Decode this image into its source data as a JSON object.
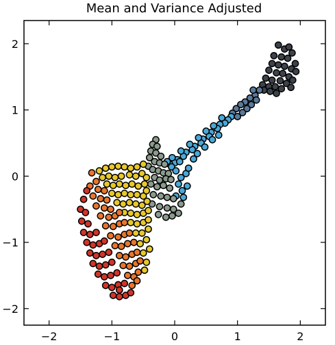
{
  "chart_data": {
    "type": "scatter",
    "title": "Mean and Variance Adjusted",
    "xlabel": "",
    "ylabel": "",
    "xlim": [
      -2.4,
      2.4
    ],
    "ylim": [
      -2.25,
      2.35
    ],
    "xticks": [
      -2,
      -1,
      0,
      1,
      2
    ],
    "yticks": [
      -2,
      -1,
      0,
      1,
      2
    ],
    "xtick_labels": [
      "−2",
      "−1",
      "0",
      "1",
      "2"
    ],
    "ytick_labels": [
      "−2",
      "−1",
      "0",
      "1",
      "2"
    ],
    "grid": false,
    "colors": {
      "neck_dark": "#3a4048",
      "neck_blue": "#4aa8d8",
      "knobs_gray": "#8a9a8c",
      "body_yellow": "#e8c82a",
      "body_orange": "#e8742a",
      "body_red": "#d0352a"
    },
    "series": [
      {
        "color": "#3d434b",
        "points": [
          [
            1.65,
            1.98
          ],
          [
            1.75,
            1.92
          ],
          [
            1.82,
            1.95
          ],
          [
            1.87,
            1.86
          ],
          [
            1.58,
            1.82
          ],
          [
            1.7,
            1.8
          ],
          [
            1.8,
            1.78
          ],
          [
            1.92,
            1.7
          ],
          [
            1.55,
            1.7
          ],
          [
            1.65,
            1.68
          ],
          [
            1.75,
            1.66
          ],
          [
            1.86,
            1.62
          ],
          [
            1.5,
            1.6
          ],
          [
            1.62,
            1.56
          ],
          [
            1.72,
            1.55
          ],
          [
            1.82,
            1.5
          ],
          [
            1.93,
            1.58
          ],
          [
            1.45,
            1.48
          ],
          [
            1.55,
            1.45
          ],
          [
            1.68,
            1.44
          ],
          [
            1.78,
            1.4
          ],
          [
            1.88,
            1.45
          ],
          [
            1.6,
            1.35
          ],
          [
            1.7,
            1.32
          ],
          [
            1.5,
            1.35
          ],
          [
            1.4,
            1.38
          ],
          [
            1.85,
            1.34
          ],
          [
            1.62,
            1.25
          ],
          [
            1.52,
            1.28
          ],
          [
            1.42,
            1.3
          ]
        ]
      },
      {
        "color": "#5a7a9a",
        "points": [
          [
            1.35,
            1.3
          ],
          [
            1.28,
            1.22
          ],
          [
            1.2,
            1.18
          ],
          [
            1.3,
            1.15
          ],
          [
            1.12,
            1.12
          ],
          [
            1.22,
            1.08
          ],
          [
            1.05,
            1.08
          ],
          [
            1.15,
            1.02
          ],
          [
            0.98,
            1.02
          ],
          [
            1.08,
            0.96
          ],
          [
            0.92,
            0.95
          ],
          [
            1.0,
            0.9
          ],
          [
            1.25,
            1.3
          ]
        ]
      },
      {
        "color": "#4aa8d8",
        "points": [
          [
            0.9,
            0.9
          ],
          [
            0.85,
            0.85
          ],
          [
            0.8,
            0.8
          ],
          [
            0.75,
            0.88
          ],
          [
            0.72,
            0.78
          ],
          [
            0.68,
            0.72
          ],
          [
            0.62,
            0.76
          ],
          [
            0.58,
            0.66
          ],
          [
            0.55,
            0.6
          ],
          [
            0.5,
            0.68
          ],
          [
            0.45,
            0.56
          ],
          [
            0.42,
            0.5
          ],
          [
            0.38,
            0.58
          ],
          [
            0.32,
            0.45
          ],
          [
            0.28,
            0.4
          ],
          [
            0.24,
            0.48
          ],
          [
            0.18,
            0.36
          ],
          [
            0.14,
            0.3
          ],
          [
            0.1,
            0.38
          ],
          [
            0.04,
            0.25
          ],
          [
            0.0,
            0.2
          ],
          [
            -0.04,
            0.28
          ],
          [
            -0.08,
            0.18
          ],
          [
            -0.12,
            0.22
          ],
          [
            -0.05,
            0.14
          ],
          [
            0.08,
            0.22
          ],
          [
            0.02,
            0.08
          ],
          [
            0.1,
            -0.02
          ],
          [
            0.18,
            0.04
          ],
          [
            0.06,
            -0.12
          ],
          [
            0.12,
            -0.22
          ],
          [
            0.2,
            -0.15
          ],
          [
            0.14,
            -0.32
          ],
          [
            0.02,
            -0.3
          ],
          [
            0.22,
            0.12
          ],
          [
            0.3,
            0.26
          ],
          [
            0.36,
            0.34
          ],
          [
            0.48,
            0.44
          ],
          [
            0.6,
            0.55
          ],
          [
            0.7,
            0.62
          ]
        ]
      },
      {
        "color": "#8a9a8c",
        "points": [
          [
            -0.3,
            0.55
          ],
          [
            -0.35,
            0.48
          ],
          [
            -0.28,
            0.45
          ],
          [
            -0.38,
            0.38
          ],
          [
            -0.3,
            0.35
          ],
          [
            -0.22,
            0.3
          ],
          [
            -0.4,
            0.28
          ],
          [
            -0.32,
            0.22
          ],
          [
            -0.24,
            0.2
          ],
          [
            -0.16,
            0.18
          ],
          [
            -0.42,
            0.15
          ],
          [
            -0.35,
            0.1
          ],
          [
            -0.26,
            0.08
          ],
          [
            -0.18,
            0.05
          ],
          [
            -0.1,
            0.04
          ],
          [
            -0.32,
            -0.02
          ],
          [
            -0.24,
            -0.06
          ],
          [
            -0.14,
            -0.04
          ],
          [
            -0.06,
            -0.05
          ],
          [
            -0.38,
            -0.12
          ],
          [
            -0.28,
            -0.16
          ],
          [
            -0.18,
            -0.14
          ],
          [
            -0.08,
            -0.18
          ],
          [
            -0.34,
            -0.28
          ],
          [
            -0.22,
            -0.3
          ],
          [
            -0.12,
            -0.32
          ],
          [
            -0.02,
            -0.34
          ],
          [
            -0.36,
            -0.42
          ],
          [
            -0.24,
            -0.46
          ],
          [
            -0.12,
            -0.48
          ],
          [
            -0.02,
            -0.5
          ],
          [
            -0.26,
            -0.58
          ],
          [
            -0.14,
            -0.62
          ],
          [
            -0.04,
            -0.6
          ],
          [
            0.06,
            -0.56
          ],
          [
            0.1,
            -0.42
          ]
        ]
      },
      {
        "color": "#e8c82a",
        "points": [
          [
            -1.1,
            0.12
          ],
          [
            -1.0,
            0.14
          ],
          [
            -0.9,
            0.15
          ],
          [
            -0.8,
            0.14
          ],
          [
            -0.7,
            0.12
          ],
          [
            -0.6,
            0.14
          ],
          [
            -0.5,
            0.18
          ],
          [
            -1.2,
            0.08
          ],
          [
            -1.15,
            -0.02
          ],
          [
            -1.05,
            0.0
          ],
          [
            -0.95,
            -0.02
          ],
          [
            -0.85,
            0.0
          ],
          [
            -0.72,
            0.02
          ],
          [
            -0.62,
            0.0
          ],
          [
            -0.52,
            0.04
          ],
          [
            -0.45,
            -0.02
          ],
          [
            -1.08,
            -0.12
          ],
          [
            -0.98,
            -0.14
          ],
          [
            -0.88,
            -0.12
          ],
          [
            -0.78,
            -0.14
          ],
          [
            -0.68,
            -0.12
          ],
          [
            -0.58,
            -0.15
          ],
          [
            -0.48,
            -0.12
          ],
          [
            -1.0,
            -0.26
          ],
          [
            -0.9,
            -0.28
          ],
          [
            -0.8,
            -0.26
          ],
          [
            -0.7,
            -0.28
          ],
          [
            -0.6,
            -0.28
          ],
          [
            -0.5,
            -0.3
          ],
          [
            -0.45,
            -0.22
          ],
          [
            -0.92,
            -0.4
          ],
          [
            -0.82,
            -0.42
          ],
          [
            -0.72,
            -0.4
          ],
          [
            -0.62,
            -0.42
          ],
          [
            -0.52,
            -0.44
          ],
          [
            -0.44,
            -0.38
          ],
          [
            -0.8,
            -0.55
          ],
          [
            -0.7,
            -0.56
          ],
          [
            -0.6,
            -0.58
          ],
          [
            -0.5,
            -0.56
          ],
          [
            -0.42,
            -0.52
          ],
          [
            -0.7,
            -0.7
          ],
          [
            -0.6,
            -0.72
          ],
          [
            -0.5,
            -0.7
          ],
          [
            -0.42,
            -0.66
          ],
          [
            -0.62,
            -0.86
          ],
          [
            -0.52,
            -0.86
          ],
          [
            -0.42,
            -0.8
          ],
          [
            -0.55,
            -1.02
          ],
          [
            -0.45,
            -0.96
          ],
          [
            -0.5,
            -1.16
          ],
          [
            -0.4,
            -1.1
          ],
          [
            -0.45,
            -1.3
          ],
          [
            -0.48,
            -1.42
          ]
        ]
      },
      {
        "color": "#e8762b",
        "points": [
          [
            -1.32,
            0.05
          ],
          [
            -1.25,
            -0.08
          ],
          [
            -1.35,
            -0.15
          ],
          [
            -1.22,
            -0.2
          ],
          [
            -1.12,
            -0.22
          ],
          [
            -1.3,
            -0.3
          ],
          [
            -1.18,
            -0.34
          ],
          [
            -1.08,
            -0.36
          ],
          [
            -1.25,
            -0.45
          ],
          [
            -1.12,
            -0.48
          ],
          [
            -1.02,
            -0.5
          ],
          [
            -1.18,
            -0.6
          ],
          [
            -1.05,
            -0.62
          ],
          [
            -0.95,
            -0.6
          ],
          [
            -0.88,
            -0.55
          ],
          [
            -1.1,
            -0.75
          ],
          [
            -0.98,
            -0.76
          ],
          [
            -0.88,
            -0.72
          ],
          [
            -0.8,
            -0.7
          ],
          [
            -1.02,
            -0.9
          ],
          [
            -0.9,
            -0.92
          ],
          [
            -0.8,
            -0.88
          ],
          [
            -0.72,
            -0.86
          ],
          [
            -0.95,
            -1.05
          ],
          [
            -0.85,
            -1.06
          ],
          [
            -0.75,
            -1.02
          ],
          [
            -0.65,
            -1.0
          ],
          [
            -0.88,
            -1.2
          ],
          [
            -0.78,
            -1.22
          ],
          [
            -0.68,
            -1.18
          ],
          [
            -0.6,
            -1.15
          ],
          [
            -0.82,
            -1.35
          ],
          [
            -0.72,
            -1.36
          ],
          [
            -0.62,
            -1.32
          ],
          [
            -0.55,
            -1.28
          ],
          [
            -0.75,
            -1.5
          ],
          [
            -0.65,
            -1.52
          ],
          [
            -0.58,
            -1.45
          ],
          [
            -0.68,
            -1.65
          ],
          [
            -0.6,
            -1.58
          ]
        ]
      },
      {
        "color": "#d0352a",
        "points": [
          [
            -1.45,
            -0.35
          ],
          [
            -1.5,
            -0.5
          ],
          [
            -1.42,
            -0.55
          ],
          [
            -1.48,
            -0.68
          ],
          [
            -1.38,
            -0.72
          ],
          [
            -1.45,
            -0.85
          ],
          [
            -1.35,
            -0.88
          ],
          [
            -1.25,
            -0.85
          ],
          [
            -1.4,
            -1.0
          ],
          [
            -1.3,
            -1.04
          ],
          [
            -1.2,
            -1.02
          ],
          [
            -1.12,
            -0.98
          ],
          [
            -1.35,
            -1.16
          ],
          [
            -1.25,
            -1.2
          ],
          [
            -1.15,
            -1.18
          ],
          [
            -1.05,
            -1.15
          ],
          [
            -1.3,
            -1.32
          ],
          [
            -1.2,
            -1.36
          ],
          [
            -1.1,
            -1.34
          ],
          [
            -1.0,
            -1.3
          ],
          [
            -1.22,
            -1.48
          ],
          [
            -1.12,
            -1.52
          ],
          [
            -1.02,
            -1.5
          ],
          [
            -0.92,
            -1.46
          ],
          [
            -1.1,
            -1.65
          ],
          [
            -1.0,
            -1.68
          ],
          [
            -0.9,
            -1.64
          ],
          [
            -0.8,
            -1.62
          ],
          [
            -0.98,
            -1.8
          ],
          [
            -0.88,
            -1.82
          ],
          [
            -0.78,
            -1.8
          ],
          [
            -0.7,
            -1.76
          ],
          [
            -0.88,
            -1.72
          ],
          [
            -1.4,
            -0.22
          ]
        ]
      }
    ]
  }
}
